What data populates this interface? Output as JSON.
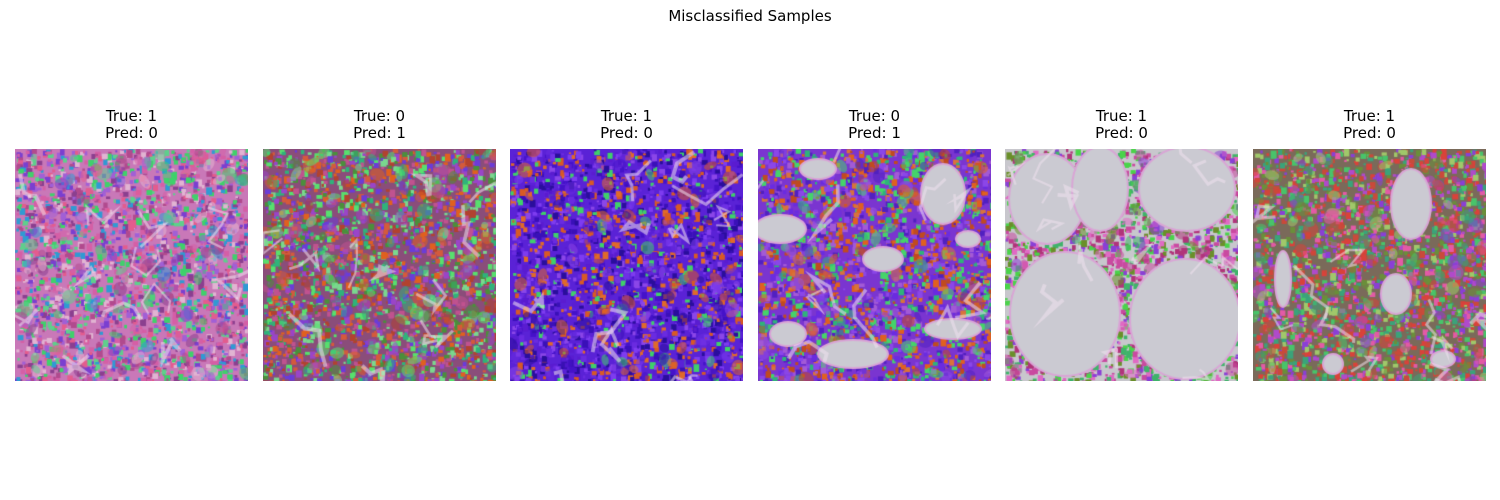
{
  "figure": {
    "title": "Misclassified Samples"
  },
  "samples": [
    {
      "true_label": "True: 1",
      "pred_label": "Pred: 0",
      "style": {
        "bg": "#c978b8",
        "colors": [
          "#d55fa6",
          "#8b3f8f",
          "#3fd16b",
          "#2f9ad3",
          "#7a3fd0",
          "#e1b4d2",
          "#b14a8e",
          "#e35c8e",
          "#5fcf8c",
          "#a15fd6"
        ],
        "lumens": []
      }
    },
    {
      "true_label": "True: 0",
      "pred_label": "Pred: 1",
      "style": {
        "bg": "#8a4d7a",
        "colors": [
          "#e0601f",
          "#b2422f",
          "#6b3cd8",
          "#58e06e",
          "#2fb37a",
          "#9a45c8",
          "#d45a3c",
          "#7ad88f",
          "#c0528f",
          "#4b8f3b"
        ],
        "lumens": []
      }
    },
    {
      "true_label": "True: 1",
      "pred_label": "Pred: 0",
      "style": {
        "bg": "#5a22d6",
        "colors": [
          "#3a10b8",
          "#6a2be0",
          "#d85a25",
          "#4512c9",
          "#7e3cf0",
          "#3fd06a",
          "#e06a2a",
          "#2a0e9c",
          "#8b46e8",
          "#5a1cd0"
        ],
        "lumens": []
      }
    },
    {
      "true_label": "True: 0",
      "pred_label": "Pred: 1",
      "style": {
        "bg": "#7a35d0",
        "colors": [
          "#e0601f",
          "#c04a20",
          "#6a2be0",
          "#8b46e8",
          "#45d46a",
          "#d9733a",
          "#5120c0",
          "#2fb37a",
          "#a35ad6"
        ],
        "lumens": [
          {
            "x": 22,
            "y": 80,
            "rx": 26,
            "ry": 14
          },
          {
            "x": 185,
            "y": 45,
            "rx": 22,
            "ry": 30
          },
          {
            "x": 125,
            "y": 110,
            "rx": 20,
            "ry": 12
          },
          {
            "x": 30,
            "y": 185,
            "rx": 18,
            "ry": 12
          },
          {
            "x": 195,
            "y": 180,
            "rx": 28,
            "ry": 10
          },
          {
            "x": 95,
            "y": 205,
            "rx": 35,
            "ry": 14
          },
          {
            "x": 210,
            "y": 90,
            "rx": 12,
            "ry": 8
          },
          {
            "x": 60,
            "y": 20,
            "rx": 18,
            "ry": 10
          }
        ]
      }
    },
    {
      "true_label": "True: 1",
      "pred_label": "Pred: 0",
      "style": {
        "bg": "#c8c7cd",
        "colors": [
          "#4ad34a",
          "#8a3fd6",
          "#b0347a",
          "#e06ac4",
          "#6a8f2a",
          "#c94aa0",
          "#3fb36a"
        ],
        "lumens": [
          {
            "x": 42,
            "y": 50,
            "rx": 38,
            "ry": 45
          },
          {
            "x": 95,
            "y": 40,
            "rx": 28,
            "ry": 42
          },
          {
            "x": 182,
            "y": 40,
            "rx": 48,
            "ry": 42
          },
          {
            "x": 60,
            "y": 165,
            "rx": 55,
            "ry": 62
          },
          {
            "x": 180,
            "y": 170,
            "rx": 55,
            "ry": 60
          }
        ]
      }
    },
    {
      "true_label": "True: 1",
      "pred_label": "Pred: 0",
      "style": {
        "bg": "#7a6a5a",
        "colors": [
          "#d9423a",
          "#8a3fd6",
          "#48c46a",
          "#6a8f3a",
          "#e35aa6",
          "#3aa37a",
          "#b04acb",
          "#a0c86a",
          "#c94a3a"
        ],
        "lumens": [
          {
            "x": 158,
            "y": 55,
            "rx": 20,
            "ry": 35
          },
          {
            "x": 143,
            "y": 145,
            "rx": 15,
            "ry": 20
          },
          {
            "x": 30,
            "y": 130,
            "rx": 8,
            "ry": 28
          },
          {
            "x": 80,
            "y": 215,
            "rx": 10,
            "ry": 10
          },
          {
            "x": 190,
            "y": 210,
            "rx": 12,
            "ry": 8
          }
        ]
      }
    }
  ]
}
